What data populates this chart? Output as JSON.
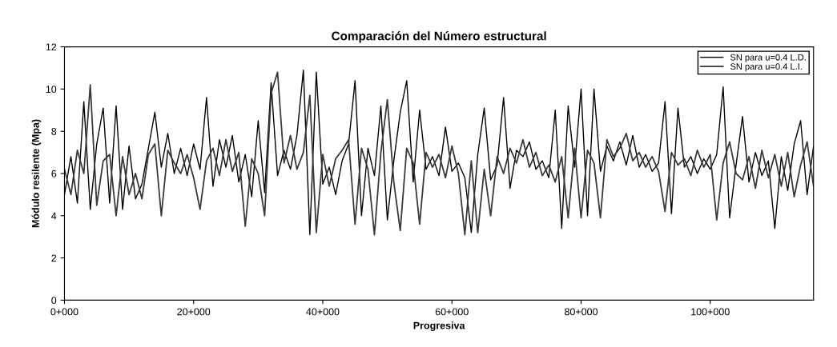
{
  "chart_data": {
    "type": "line",
    "title": "Comparación del Número estructural",
    "xlabel": "Progresiva",
    "ylabel": "Módulo resilente (Mpa)",
    "categories": [
      "0+000",
      null,
      null,
      null,
      null,
      null,
      null,
      null,
      null,
      null,
      null,
      null,
      null,
      null,
      null,
      null,
      null,
      null,
      null,
      null,
      "20+000",
      null,
      null,
      null,
      null,
      null,
      null,
      null,
      null,
      null,
      null,
      null,
      null,
      null,
      null,
      null,
      null,
      null,
      null,
      null,
      "40+000",
      null,
      null,
      null,
      null,
      null,
      null,
      null,
      null,
      null,
      null,
      null,
      null,
      null,
      null,
      null,
      null,
      null,
      null,
      null,
      "60+000",
      null,
      null,
      null,
      null,
      null,
      null,
      null,
      null,
      null,
      null,
      null,
      null,
      null,
      null,
      null,
      null,
      null,
      null,
      null,
      "80+000",
      null,
      null,
      null,
      null,
      null,
      null,
      null,
      null,
      null,
      null,
      null,
      null,
      null,
      null,
      null,
      null,
      null,
      null,
      null,
      "100+000",
      null,
      null,
      null,
      null,
      null,
      null,
      null,
      null,
      null,
      null,
      null,
      null,
      null,
      null,
      null,
      null
    ],
    "series": [
      {
        "name": "SN para u=0.4 L.D.",
        "color": "#000000",
        "values": [
          5.0,
          6.8,
          4.6,
          9.4,
          4.3,
          7.4,
          9.1,
          4.6,
          9.2,
          4.3,
          7.3,
          4.8,
          5.5,
          7.2,
          8.9,
          6.3,
          7.9,
          6.0,
          7.2,
          5.9,
          7.4,
          6.2,
          9.6,
          5.4,
          7.6,
          6.3,
          7.8,
          5.6,
          6.9,
          4.9,
          8.5,
          5.1,
          10.3,
          5.9,
          7.1,
          6.2,
          7.8,
          10.9,
          3.1,
          10.8,
          5.5,
          6.3,
          5.0,
          6.6,
          7.4,
          10.4,
          4.0,
          7.2,
          5.9,
          9.2,
          3.8,
          6.6,
          8.9,
          10.4,
          5.6,
          9.0,
          6.2,
          6.8,
          5.9,
          8.2,
          6.1,
          6.5,
          5.8,
          3.2,
          6.9,
          9.1,
          5.7,
          6.4,
          9.6,
          5.3,
          7.1,
          6.8,
          7.5,
          6.2,
          6.6,
          5.8,
          9.0,
          3.4,
          9.2,
          6.3,
          10.0,
          4.0,
          10.0,
          6.1,
          7.3,
          6.6,
          7.5,
          6.4,
          7.8,
          6.3,
          6.9,
          6.1,
          6.5,
          9.4,
          4.1,
          9.1,
          6.3,
          6.8,
          6.0,
          6.7,
          6.2,
          6.9,
          10.1,
          3.9,
          6.4,
          8.7,
          5.6,
          7.0,
          5.9,
          6.6,
          3.4,
          6.8,
          5.2,
          7.4,
          8.5,
          5.0,
          7.3
        ]
      },
      {
        "name": "SN para u=0.4 L.I.",
        "color": "#3a3a3a",
        "values": [
          6.2,
          5.0,
          7.1,
          6.0,
          10.2,
          4.5,
          6.6,
          6.9,
          4.0,
          6.8,
          5.0,
          6.0,
          4.8,
          6.9,
          7.4,
          4.0,
          7.1,
          6.5,
          6.0,
          6.9,
          5.8,
          4.3,
          6.6,
          7.2,
          5.9,
          7.6,
          6.1,
          7.0,
          3.5,
          6.7,
          6.0,
          4.0,
          9.8,
          10.8,
          6.5,
          7.8,
          6.2,
          7.0,
          9.7,
          3.2,
          6.9,
          5.4,
          6.7,
          7.1,
          7.6,
          3.6,
          7.2,
          6.2,
          3.1,
          7.0,
          9.5,
          5.6,
          3.3,
          7.2,
          6.5,
          3.6,
          7.0,
          6.3,
          6.9,
          5.8,
          7.3,
          6.0,
          3.1,
          6.6,
          3.2,
          6.2,
          4.0,
          6.8,
          6.0,
          7.2,
          6.5,
          7.6,
          6.3,
          7.0,
          5.9,
          6.4,
          5.6,
          6.8,
          3.9,
          7.2,
          3.9,
          7.1,
          6.5,
          3.9,
          7.6,
          6.8,
          7.2,
          7.9,
          6.6,
          7.0,
          6.3,
          6.8,
          6.1,
          4.2,
          7.0,
          6.4,
          6.7,
          5.9,
          7.1,
          6.3,
          6.9,
          3.8,
          6.5,
          7.5,
          6.0,
          5.7,
          6.8,
          5.3,
          7.1,
          5.8,
          6.9,
          5.4,
          7.0,
          4.9,
          6.4,
          7.5,
          5.4
        ]
      }
    ],
    "ylim": [
      0,
      12
    ],
    "yticks": [
      0,
      2,
      4,
      6,
      8,
      10,
      12
    ],
    "grid": false,
    "legend": "top right",
    "marker": "none",
    "line_style": "solid"
  }
}
